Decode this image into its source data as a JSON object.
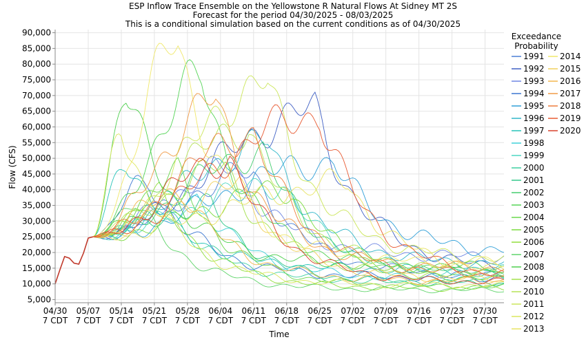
{
  "chart_data": {
    "type": "line",
    "title": "ESP Inflow Trace Ensemble on the Yellowstone R Natural Flows At Sidney MT 2S",
    "subtitle_lines": [
      "Forecast for the period 04/30/2025 - 08/03/2025",
      "This is a conditional simulation based on the current conditions as of 04/30/2025"
    ],
    "xlabel": "Time",
    "ylabel": "Flow (CFS)",
    "xlim": [
      0,
      95
    ],
    "ylim": [
      4000,
      91000
    ],
    "x_ticks": [
      {
        "day": 0,
        "line1": "04/30",
        "line2": "7 CDT"
      },
      {
        "day": 7,
        "line1": "05/07",
        "line2": "7 CDT"
      },
      {
        "day": 14,
        "line1": "05/14",
        "line2": "7 CDT"
      },
      {
        "day": 21,
        "line1": "05/21",
        "line2": "7 CDT"
      },
      {
        "day": 28,
        "line1": "05/28",
        "line2": "7 CDT"
      },
      {
        "day": 35,
        "line1": "06/04",
        "line2": "7 CDT"
      },
      {
        "day": 42,
        "line1": "06/11",
        "line2": "7 CDT"
      },
      {
        "day": 49,
        "line1": "06/18",
        "line2": "7 CDT"
      },
      {
        "day": 56,
        "line1": "06/25",
        "line2": "7 CDT"
      },
      {
        "day": 63,
        "line1": "07/02",
        "line2": "7 CDT"
      },
      {
        "day": 70,
        "line1": "07/09",
        "line2": "7 CDT"
      },
      {
        "day": 77,
        "line1": "07/16",
        "line2": "7 CDT"
      },
      {
        "day": 84,
        "line1": "07/23",
        "line2": "7 CDT"
      },
      {
        "day": 91,
        "line1": "07/30",
        "line2": "7 CDT"
      }
    ],
    "y_ticks": [
      5000,
      10000,
      15000,
      20000,
      25000,
      30000,
      35000,
      40000,
      45000,
      50000,
      55000,
      60000,
      65000,
      70000,
      75000,
      80000,
      85000,
      90000
    ],
    "y_tick_labels": [
      "5,000",
      "10,000",
      "15,000",
      "20,000",
      "25,000",
      "30,000",
      "35,000",
      "40,000",
      "45,000",
      "50,000",
      "55,000",
      "60,000",
      "65,000",
      "70,000",
      "75,000",
      "80,000",
      "85,000",
      "90,000"
    ],
    "legend": {
      "title_lines": [
        "Exceedance",
        "Probability"
      ],
      "placement": "right"
    },
    "observed": {
      "x": [
        0,
        1,
        2,
        3,
        4,
        5,
        6,
        7,
        8
      ],
      "y": [
        10000,
        14500,
        18700,
        18200,
        16600,
        16300,
        19800,
        24600,
        25000
      ]
    },
    "series": [
      {
        "name": "1991",
        "color": "#4a7fd6",
        "peak_day": 42,
        "peak": 45000,
        "end": 12500,
        "offset": 0
      },
      {
        "name": "1992",
        "color": "#3f5fc4",
        "peak_day": 55,
        "peak": 65000,
        "end": 14000,
        "offset": 1
      },
      {
        "name": "1993",
        "color": "#6f86e2",
        "peak_day": 38,
        "peak": 47000,
        "end": 18500,
        "offset": 2
      },
      {
        "name": "1994",
        "color": "#3a76d0",
        "peak_day": 20,
        "peak": 43000,
        "end": 12000,
        "offset": 3
      },
      {
        "name": "1995",
        "color": "#2f9fd8",
        "peak_day": 59,
        "peak": 49000,
        "end": 19500,
        "offset": 4
      },
      {
        "name": "1996",
        "color": "#30b6c9",
        "peak_day": 45,
        "peak": 55000,
        "end": 16000,
        "offset": 5
      },
      {
        "name": "1997",
        "color": "#26c3b8",
        "peak_day": 15,
        "peak": 51000,
        "end": 14500,
        "offset": 6
      },
      {
        "name": "1998",
        "color": "#3ed0d8",
        "peak_day": 30,
        "peak": 38000,
        "end": 11500,
        "offset": 7
      },
      {
        "name": "1999",
        "color": "#4cd7c2",
        "peak_day": 48,
        "peak": 42000,
        "end": 12800,
        "offset": 8
      },
      {
        "name": "2000",
        "color": "#3ccfa0",
        "peak_day": 24,
        "peak": 33000,
        "end": 10500,
        "offset": 9
      },
      {
        "name": "2001",
        "color": "#33c98a",
        "peak_day": 33,
        "peak": 35000,
        "end": 10000,
        "offset": 10
      },
      {
        "name": "2002",
        "color": "#42cc6e",
        "peak_day": 44,
        "peak": 52000,
        "end": 13200,
        "offset": 11
      },
      {
        "name": "2003",
        "color": "#54d456",
        "peak_day": 31,
        "peak": 75000,
        "end": 13800,
        "offset": 12
      },
      {
        "name": "2004",
        "color": "#69d84a",
        "peak_day": 26,
        "peak": 45000,
        "end": 9000,
        "offset": 13
      },
      {
        "name": "2005",
        "color": "#7bdb3e",
        "peak_day": 50,
        "peak": 40000,
        "end": 11000,
        "offset": 14
      },
      {
        "name": "2006",
        "color": "#90de3a",
        "peak_day": 22,
        "peak": 38000,
        "end": 8500,
        "offset": 15
      },
      {
        "name": "2007",
        "color": "#5fd46a",
        "peak_day": 17,
        "peak": 36000,
        "end": 8000,
        "offset": 16
      },
      {
        "name": "2008",
        "color": "#4ccf4c",
        "peak_day": 15,
        "peak": 71000,
        "end": 15500,
        "offset": 17
      },
      {
        "name": "2009",
        "color": "#a2e04a",
        "peak_day": 36,
        "peak": 47000,
        "end": 12200,
        "offset": 18
      },
      {
        "name": "2010",
        "color": "#b6e356",
        "peak_day": 41,
        "peak": 60000,
        "end": 14200,
        "offset": 19
      },
      {
        "name": "2011",
        "color": "#cbe65a",
        "peak_day": 45,
        "peak": 74000,
        "end": 17500,
        "offset": 20
      },
      {
        "name": "2012",
        "color": "#dbe75e",
        "peak_day": 14,
        "peak": 60000,
        "end": 9500,
        "offset": 21
      },
      {
        "name": "2013",
        "color": "#e8e363",
        "peak_day": 62,
        "peak": 42000,
        "end": 13000,
        "offset": 22
      },
      {
        "name": "2014",
        "color": "#f0e86a",
        "peak_day": 26,
        "peak": 86500,
        "end": 16500,
        "offset": 23
      },
      {
        "name": "2015",
        "color": "#f0d05a",
        "peak_day": 39,
        "peak": 41000,
        "end": 11300,
        "offset": 24
      },
      {
        "name": "2016",
        "color": "#f2b64e",
        "peak_day": 27,
        "peak": 40000,
        "end": 10800,
        "offset": 25
      },
      {
        "name": "2017",
        "color": "#f09a45",
        "peak_day": 34,
        "peak": 68000,
        "end": 15000,
        "offset": 26
      },
      {
        "name": "2018",
        "color": "#ee7c3c",
        "peak_day": 42,
        "peak": 58000,
        "end": 12700,
        "offset": 27
      },
      {
        "name": "2019",
        "color": "#e85a32",
        "peak_day": 56,
        "peak": 64000,
        "end": 11600,
        "offset": 28
      },
      {
        "name": "2020",
        "color": "#d8402a",
        "peak_day": 37,
        "peak": 50000,
        "end": 10400,
        "offset": 29
      }
    ]
  }
}
